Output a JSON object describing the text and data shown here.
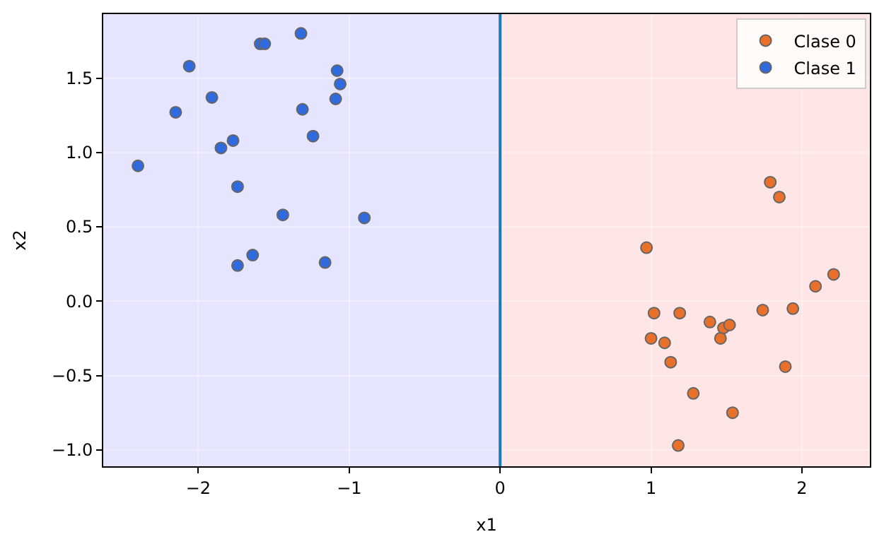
{
  "chart_data": {
    "type": "scatter",
    "xlabel": "x1",
    "ylabel": "x2",
    "xlim": [
      -2.63,
      2.45
    ],
    "xticks": [
      {
        "value": -2,
        "label": "−2"
      },
      {
        "value": -1,
        "label": "−1"
      },
      0,
      1,
      2
    ],
    "ylim": [
      -1.11,
      1.93
    ],
    "yticks": [
      {
        "value": -1,
        "label": "−1.0"
      },
      {
        "value": -0.5,
        "label": "−0.5"
      },
      {
        "value": 0,
        "label": "0.0"
      },
      {
        "value": 0.5,
        "label": "0.5"
      },
      {
        "value": 1,
        "label": "1.0"
      },
      {
        "value": 1.5,
        "label": "1.5"
      }
    ],
    "grid": true,
    "legend": "top right",
    "marker": "circle",
    "bands": [
      {
        "axis": "x",
        "from": -2.63,
        "to": 0,
        "color": "#e5e5ff"
      },
      {
        "axis": "x",
        "from": 0,
        "to": 2.45,
        "color": "#ffe5e5"
      }
    ],
    "ref_lines": [
      {
        "axis": "x",
        "value": 0,
        "color": "#1f77b4"
      }
    ],
    "series": [
      {
        "name": "Clase 0",
        "color": "#e8702a",
        "x": [
          0.97,
          1.02,
          1.19,
          1.39,
          1.48,
          1.52,
          1.46,
          1.0,
          1.09,
          1.13,
          1.28,
          1.54,
          1.18,
          1.74,
          1.94,
          2.09,
          2.21,
          1.89,
          1.79,
          1.85
        ],
        "values": [
          0.36,
          -0.08,
          -0.08,
          -0.14,
          -0.18,
          -0.16,
          -0.25,
          -0.25,
          -0.28,
          -0.41,
          -0.62,
          -0.75,
          -0.97,
          -0.06,
          -0.05,
          0.1,
          0.18,
          -0.44,
          0.8,
          0.7
        ]
      },
      {
        "name": "Clase 1",
        "color": "#2f6bdf",
        "x": [
          -1.32,
          -1.59,
          -1.56,
          -2.06,
          -1.08,
          -1.06,
          -1.91,
          -1.09,
          -2.15,
          -1.31,
          -1.24,
          -1.77,
          -1.85,
          -2.4,
          -1.74,
          -1.44,
          -0.9,
          -1.64,
          -1.74,
          -1.16
        ],
        "values": [
          1.8,
          1.73,
          1.73,
          1.58,
          1.55,
          1.46,
          1.37,
          1.36,
          1.27,
          1.29,
          1.11,
          1.08,
          1.03,
          0.91,
          0.77,
          0.58,
          0.56,
          0.31,
          0.24,
          0.26
        ]
      }
    ]
  }
}
